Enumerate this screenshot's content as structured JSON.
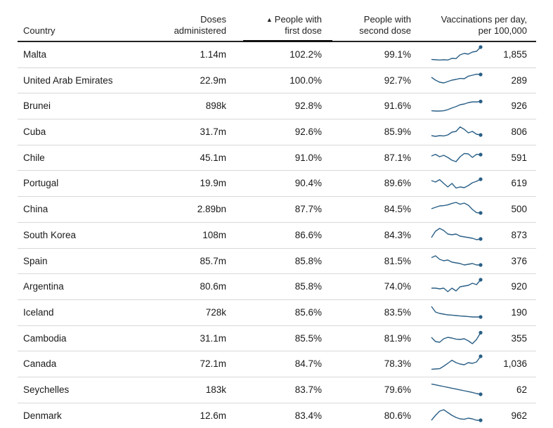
{
  "header": {
    "country": "Country",
    "doses": [
      "Doses",
      "administered"
    ],
    "first": [
      "People with",
      "first dose"
    ],
    "second": [
      "People with",
      "second dose"
    ],
    "perday": [
      "Vaccinations per day,",
      "per 100,000"
    ],
    "sort_arrow": "▲"
  },
  "colors": {
    "spark_line": "#2a5f86",
    "divider": "#d8d8d8",
    "rule": "#222222"
  },
  "chart_data": {
    "type": "table",
    "columns": [
      "Country",
      "Doses administered",
      "People with first dose",
      "People with second dose",
      "Vaccinations per day, per 100,000"
    ],
    "sorted_by": "People with first dose",
    "rows": [
      {
        "country": "Malta",
        "doses": "1.14m",
        "first": "102.2%",
        "second": "99.1%",
        "perday": "1,855",
        "trend": [
          0.12,
          0.1,
          0.08,
          0.1,
          0.08,
          0.2,
          0.18,
          0.45,
          0.55,
          0.5,
          0.65,
          0.7,
          1.0
        ]
      },
      {
        "country": "United Arab Emirates",
        "doses": "22.9m",
        "first": "100.0%",
        "second": "92.7%",
        "perday": "289",
        "trend": [
          0.7,
          0.5,
          0.35,
          0.3,
          0.4,
          0.5,
          0.55,
          0.62,
          0.6,
          0.78,
          0.85,
          0.92,
          0.9
        ]
      },
      {
        "country": "Brunei",
        "doses": "898k",
        "first": "92.8%",
        "second": "91.6%",
        "perday": "926",
        "trend": [
          0.12,
          0.1,
          0.1,
          0.12,
          0.2,
          0.32,
          0.42,
          0.55,
          0.6,
          0.7,
          0.75,
          0.75,
          0.78
        ]
      },
      {
        "country": "Cuba",
        "doses": "31.7m",
        "first": "92.6%",
        "second": "85.9%",
        "perday": "806",
        "trend": [
          0.2,
          0.15,
          0.2,
          0.18,
          0.25,
          0.45,
          0.5,
          0.82,
          0.65,
          0.4,
          0.5,
          0.3,
          0.25
        ]
      },
      {
        "country": "Chile",
        "doses": "45.1m",
        "first": "91.0%",
        "second": "87.1%",
        "perday": "591",
        "trend": [
          0.6,
          0.72,
          0.55,
          0.65,
          0.5,
          0.3,
          0.2,
          0.55,
          0.78,
          0.75,
          0.5,
          0.72,
          0.7
        ]
      },
      {
        "country": "Portugal",
        "doses": "19.9m",
        "first": "90.4%",
        "second": "89.6%",
        "perday": "619",
        "trend": [
          0.65,
          0.55,
          0.72,
          0.45,
          0.2,
          0.45,
          0.12,
          0.2,
          0.15,
          0.3,
          0.5,
          0.6,
          0.75
        ]
      },
      {
        "country": "China",
        "doses": "2.89bn",
        "first": "87.7%",
        "second": "84.5%",
        "perday": "500",
        "trend": [
          0.5,
          0.6,
          0.7,
          0.72,
          0.78,
          0.88,
          0.95,
          0.82,
          0.9,
          0.75,
          0.45,
          0.22,
          0.2
        ]
      },
      {
        "country": "South Korea",
        "doses": "108m",
        "first": "86.6%",
        "second": "84.3%",
        "perday": "873",
        "trend": [
          0.3,
          0.75,
          0.95,
          0.8,
          0.55,
          0.5,
          0.55,
          0.4,
          0.35,
          0.3,
          0.25,
          0.15,
          0.2
        ]
      },
      {
        "country": "Spain",
        "doses": "85.7m",
        "first": "85.8%",
        "second": "81.5%",
        "perday": "376",
        "trend": [
          0.72,
          0.85,
          0.6,
          0.5,
          0.55,
          0.4,
          0.35,
          0.3,
          0.2,
          0.25,
          0.3,
          0.2,
          0.2
        ]
      },
      {
        "country": "Argentina",
        "doses": "80.6m",
        "first": "85.8%",
        "second": "74.0%",
        "perday": "920",
        "trend": [
          0.35,
          0.35,
          0.3,
          0.35,
          0.1,
          0.35,
          0.15,
          0.45,
          0.5,
          0.55,
          0.7,
          0.6,
          0.95
        ]
      },
      {
        "country": "Iceland",
        "doses": "728k",
        "first": "85.6%",
        "second": "83.5%",
        "perday": "190",
        "trend": [
          0.9,
          0.5,
          0.4,
          0.35,
          0.3,
          0.28,
          0.25,
          0.22,
          0.2,
          0.18,
          0.15,
          0.15,
          0.15
        ]
      },
      {
        "country": "Cambodia",
        "doses": "31.1m",
        "first": "85.5%",
        "second": "81.9%",
        "perday": "355",
        "trend": [
          0.55,
          0.25,
          0.2,
          0.45,
          0.55,
          0.5,
          0.42,
          0.4,
          0.45,
          0.3,
          0.1,
          0.4,
          0.88
        ]
      },
      {
        "country": "Canada",
        "doses": "72.1m",
        "first": "84.7%",
        "second": "78.3%",
        "perday": "1,036",
        "trend": [
          0.08,
          0.1,
          0.12,
          0.3,
          0.5,
          0.72,
          0.55,
          0.45,
          0.4,
          0.55,
          0.5,
          0.6,
          1.0
        ]
      },
      {
        "country": "Seychelles",
        "doses": "183k",
        "first": "83.7%",
        "second": "79.6%",
        "perday": "62",
        "trend": [
          0.88,
          0.82,
          0.76,
          0.7,
          0.64,
          0.58,
          0.52,
          0.46,
          0.4,
          0.34,
          0.28,
          0.2,
          0.15
        ]
      },
      {
        "country": "Denmark",
        "doses": "12.6m",
        "first": "83.4%",
        "second": "80.6%",
        "perday": "962",
        "trend": [
          0.15,
          0.5,
          0.8,
          0.9,
          0.7,
          0.5,
          0.35,
          0.25,
          0.22,
          0.3,
          0.25,
          0.15,
          0.15
        ]
      }
    ]
  }
}
